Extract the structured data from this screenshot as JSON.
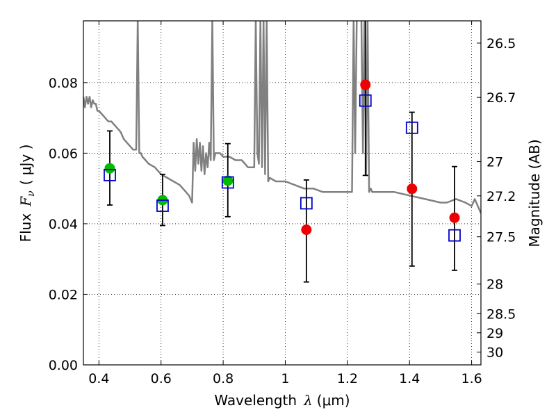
{
  "chart_data": {
    "type": "scatter",
    "xlabel": "Wavelength",
    "xlabel_symbol": "λ",
    "xlabel_unit": "(μm)",
    "ylabel": "Flux",
    "ylabel_symbol": "F",
    "ylabel_subscript": "ν",
    "ylabel_unit": "( μJy )",
    "y2label": "Magnitude (AB)",
    "xlim": [
      0.35,
      1.63
    ],
    "ylim": [
      0.0,
      0.0975
    ],
    "grid": true,
    "x_ticks": [
      0.4,
      0.6,
      0.8,
      1.0,
      1.2,
      1.4,
      1.6
    ],
    "x_tick_labels": [
      "0.4",
      "0.6",
      "0.8",
      "1",
      "1.2",
      "1.4",
      "1.6"
    ],
    "y_ticks": [
      0.0,
      0.02,
      0.04,
      0.06,
      0.08
    ],
    "y_tick_labels": [
      "0.00",
      "0.02",
      "0.04",
      "0.06",
      "0.08"
    ],
    "y2_ticks": [
      {
        "label": "26.5",
        "flux": 0.0912
      },
      {
        "label": "26.7",
        "flux": 0.0758
      },
      {
        "label": "27",
        "flux": 0.0576
      },
      {
        "label": "27.2",
        "flux": 0.0479
      },
      {
        "label": "27.5",
        "flux": 0.0363
      },
      {
        "label": "28",
        "flux": 0.0229
      },
      {
        "label": "28.5",
        "flux": 0.0145
      },
      {
        "label": "29",
        "flux": 0.0091
      },
      {
        "label": "30",
        "flux": 0.0036
      }
    ],
    "colors": {
      "model": "#808080",
      "green_points": "#00bb00",
      "red_points": "#ee0000",
      "squares": "#0000cc",
      "errorbars": "#000000"
    },
    "series": [
      {
        "name": "model spectrum",
        "style": "line",
        "x": [
          0.35,
          0.355,
          0.36,
          0.365,
          0.37,
          0.375,
          0.38,
          0.385,
          0.39,
          0.395,
          0.4,
          0.41,
          0.42,
          0.43,
          0.44,
          0.45,
          0.46,
          0.47,
          0.48,
          0.49,
          0.5,
          0.51,
          0.52,
          0.525,
          0.53,
          0.535,
          0.54,
          0.55,
          0.56,
          0.58,
          0.6,
          0.62,
          0.64,
          0.66,
          0.68,
          0.69,
          0.7,
          0.705,
          0.71,
          0.715,
          0.72,
          0.725,
          0.73,
          0.735,
          0.74,
          0.745,
          0.75,
          0.755,
          0.76,
          0.765,
          0.77,
          0.775,
          0.78,
          0.79,
          0.8,
          0.82,
          0.84,
          0.86,
          0.88,
          0.9,
          0.905,
          0.91,
          0.915,
          0.92,
          0.925,
          0.93,
          0.935,
          0.94,
          0.945,
          0.95,
          0.97,
          1.0,
          1.03,
          1.06,
          1.09,
          1.12,
          1.15,
          1.18,
          1.2,
          1.215,
          1.22,
          1.225,
          1.23,
          1.245,
          1.25,
          1.255,
          1.26,
          1.265,
          1.27,
          1.275,
          1.28,
          1.3,
          1.35,
          1.4,
          1.45,
          1.5,
          1.52,
          1.55,
          1.58,
          1.6,
          1.61,
          1.62,
          1.63
        ],
        "y": [
          0.076,
          0.073,
          0.076,
          0.074,
          0.076,
          0.073,
          0.075,
          0.074,
          0.074,
          0.072,
          0.072,
          0.071,
          0.07,
          0.069,
          0.069,
          0.068,
          0.067,
          0.066,
          0.064,
          0.063,
          0.062,
          0.061,
          0.061,
          0.098,
          0.06,
          0.06,
          0.059,
          0.058,
          0.057,
          0.056,
          0.054,
          0.053,
          0.052,
          0.051,
          0.049,
          0.048,
          0.046,
          0.063,
          0.055,
          0.064,
          0.057,
          0.063,
          0.055,
          0.062,
          0.054,
          0.06,
          0.056,
          0.063,
          0.058,
          0.098,
          0.058,
          0.06,
          0.06,
          0.06,
          0.059,
          0.059,
          0.058,
          0.058,
          0.056,
          0.056,
          0.098,
          0.06,
          0.057,
          0.098,
          0.056,
          0.098,
          0.054,
          0.098,
          0.052,
          0.053,
          0.052,
          0.052,
          0.051,
          0.05,
          0.05,
          0.049,
          0.049,
          0.049,
          0.049,
          0.049,
          0.098,
          0.06,
          0.098,
          0.098,
          0.06,
          0.098,
          0.054,
          0.098,
          0.049,
          0.05,
          0.049,
          0.049,
          0.049,
          0.048,
          0.047,
          0.046,
          0.046,
          0.047,
          0.046,
          0.045,
          0.047,
          0.045,
          0.043
        ]
      },
      {
        "name": "observed (green)",
        "style": "circle",
        "x": [
          0.435,
          0.605,
          0.815
        ],
        "y": [
          0.0557,
          0.0467,
          0.0522
        ]
      },
      {
        "name": "observed (red)",
        "style": "circle",
        "x": [
          1.068,
          1.258,
          1.408,
          1.545
        ],
        "y": [
          0.0383,
          0.0794,
          0.0499,
          0.0417
        ]
      },
      {
        "name": "model photometry",
        "style": "square",
        "x": [
          0.435,
          0.605,
          0.815,
          1.068,
          1.258,
          1.408,
          1.545
        ],
        "y": [
          0.0538,
          0.0451,
          0.0517,
          0.0458,
          0.0749,
          0.0672,
          0.0367
        ]
      },
      {
        "name": "error bars",
        "style": "errorbar",
        "x": [
          0.435,
          0.605,
          0.815,
          1.068,
          1.258,
          1.408,
          1.545
        ],
        "ylow": [
          0.0453,
          0.0395,
          0.042,
          0.0235,
          0.0537,
          0.028,
          0.0268
        ],
        "yhigh": [
          0.0663,
          0.054,
          0.0627,
          0.0524,
          0.1,
          0.0716,
          0.0562
        ]
      }
    ]
  }
}
